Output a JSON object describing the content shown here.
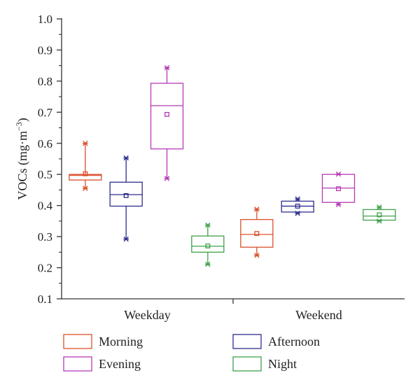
{
  "chart_data": {
    "type": "box",
    "ylabel": "VOCs (mg·m",
    "ylabel_sup": "−3",
    "ylabel_close": ")",
    "ylim": [
      0.1,
      1.0
    ],
    "yticks": [
      "0.1",
      "0.2",
      "0.3",
      "0.4",
      "0.5",
      "0.6",
      "0.7",
      "0.8",
      "0.9",
      "1.0"
    ],
    "categories": [
      "Weekday",
      "Weekend"
    ],
    "legend_position": "bottom",
    "series": [
      {
        "name": "Morning",
        "color": "#d9502b",
        "boxes": [
          {
            "category": "Weekday",
            "min": 0.455,
            "q1": 0.482,
            "median": 0.497,
            "q3": 0.5,
            "max": 0.6,
            "mean": 0.502
          },
          {
            "category": "Weekend",
            "min": 0.24,
            "q1": 0.266,
            "median": 0.307,
            "q3": 0.355,
            "max": 0.388,
            "mean": 0.31
          }
        ]
      },
      {
        "name": "Afternoon",
        "color": "#2e2e8e",
        "boxes": [
          {
            "category": "Weekday",
            "min": 0.292,
            "q1": 0.398,
            "median": 0.435,
            "q3": 0.475,
            "max": 0.553,
            "mean": 0.432
          },
          {
            "category": "Weekend",
            "min": 0.375,
            "q1": 0.379,
            "median": 0.398,
            "q3": 0.414,
            "max": 0.421,
            "mean": 0.398
          }
        ]
      },
      {
        "name": "Evening",
        "color": "#b53ab5",
        "boxes": [
          {
            "category": "Weekday",
            "min": 0.487,
            "q1": 0.582,
            "median": 0.721,
            "q3": 0.793,
            "max": 0.843,
            "mean": 0.693
          },
          {
            "category": "Weekend",
            "min": 0.403,
            "q1": 0.41,
            "median": 0.456,
            "q3": 0.5,
            "max": 0.501,
            "mean": 0.454
          }
        ]
      },
      {
        "name": "Night",
        "color": "#3fa04a",
        "boxes": [
          {
            "category": "Weekday",
            "min": 0.211,
            "q1": 0.25,
            "median": 0.269,
            "q3": 0.302,
            "max": 0.337,
            "mean": 0.27
          },
          {
            "category": "Weekend",
            "min": 0.35,
            "q1": 0.353,
            "median": 0.366,
            "q3": 0.387,
            "max": 0.395,
            "mean": 0.37
          }
        ]
      }
    ]
  }
}
